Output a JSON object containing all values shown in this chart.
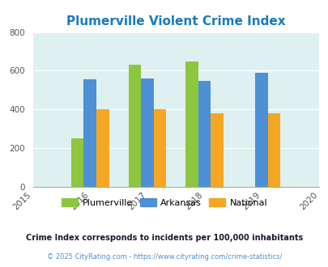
{
  "title": "Plumerville Violent Crime Index",
  "title_color": "#1a7abf",
  "years": [
    2016,
    2017,
    2018,
    2019
  ],
  "x_ticks": [
    2015,
    2016,
    2017,
    2018,
    2019,
    2020
  ],
  "plumerville": [
    252,
    632,
    648,
    0
  ],
  "arkansas": [
    555,
    558,
    547,
    590
  ],
  "national": [
    400,
    400,
    382,
    380
  ],
  "color_plumerville": "#8dc63f",
  "color_arkansas": "#4d90d5",
  "color_national": "#f5a623",
  "ylim": [
    0,
    800
  ],
  "yticks": [
    0,
    200,
    400,
    600,
    800
  ],
  "bar_width": 0.22,
  "bg_color": "#dff0f0",
  "legend_labels": [
    "Plumerville",
    "Arkansas",
    "National"
  ],
  "footnote1": "Crime Index corresponds to incidents per 100,000 inhabitants",
  "footnote2": "© 2025 CityRating.com - https://www.cityrating.com/crime-statistics/",
  "footnote1_color": "#1a1a2e",
  "footnote2_color": "#4d90d5"
}
